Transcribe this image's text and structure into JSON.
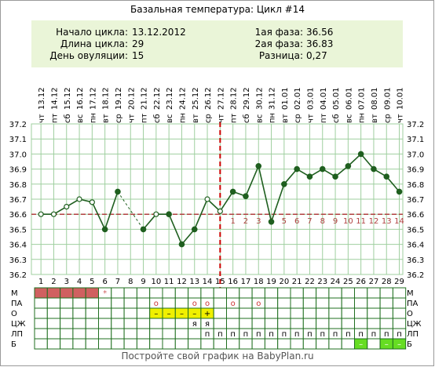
{
  "title": "Базальная температура: Цикл #14",
  "info": {
    "left": [
      {
        "label": "Начало цикла:",
        "value": "13.12.2012"
      },
      {
        "label": "Длина цикла:",
        "value": "29"
      },
      {
        "label": "День овуляции:",
        "value": "15"
      }
    ],
    "right": [
      {
        "label": "1ая фаза:",
        "value": "36.56"
      },
      {
        "label": "2ая фаза:",
        "value": "36.83"
      },
      {
        "label": "Разница:",
        "value": "0,27"
      }
    ]
  },
  "chart_data": {
    "type": "line",
    "dates": [
      "13.12",
      "14.12",
      "15.12",
      "16.12",
      "17.12",
      "18.12",
      "19.12",
      "20.12",
      "21.12",
      "22.12",
      "23.12",
      "24.12",
      "25.12",
      "26.12",
      "27.12",
      "28.12",
      "29.12",
      "30.12",
      "31.12",
      "01.01",
      "02.01",
      "03.01",
      "04.01",
      "05.01",
      "06.01",
      "07.01",
      "08.01",
      "09.01",
      "10.01"
    ],
    "weekdays": [
      "чт",
      "пт",
      "сб",
      "вс",
      "пн",
      "вт",
      "ср",
      "чт",
      "пт",
      "сб",
      "вс",
      "пн",
      "вт",
      "ср",
      "чт",
      "пт",
      "сб",
      "вс",
      "пн",
      "вт",
      "ср",
      "чт",
      "пт",
      "сб",
      "вс",
      "пн",
      "вт",
      "ср",
      "чт"
    ],
    "days": [
      1,
      2,
      3,
      4,
      5,
      6,
      7,
      8,
      9,
      10,
      11,
      12,
      13,
      14,
      15,
      16,
      17,
      18,
      19,
      20,
      21,
      22,
      23,
      24,
      25,
      26,
      27,
      28,
      29
    ],
    "y_ticks": [
      "36.2",
      "36.3",
      "36.4",
      "36.5",
      "36.6",
      "36.7",
      "36.8",
      "36.9",
      "37.0",
      "37.1",
      "37.2"
    ],
    "ylim": [
      36.2,
      37.2
    ],
    "values": [
      36.6,
      36.6,
      36.65,
      36.7,
      36.68,
      36.5,
      36.75,
      null,
      36.5,
      36.6,
      36.6,
      36.4,
      36.5,
      36.7,
      36.62,
      36.75,
      36.72,
      36.92,
      36.55,
      36.8,
      36.9,
      36.85,
      36.9,
      36.85,
      36.92,
      37.0,
      36.9,
      36.85,
      36.75
    ],
    "open_points": [
      1,
      2,
      3,
      4,
      5,
      10,
      14,
      15
    ],
    "coverline": 36.6,
    "ovulation_day": 15,
    "phase2_labels": [
      "1",
      "2",
      "3",
      "4",
      "5",
      "6",
      "7",
      "8",
      "9",
      "10",
      "11",
      "12",
      "13",
      "14"
    ],
    "colors": {
      "line": "#1f5f1f",
      "ovulation": "#cc0000",
      "coverline": "#b04040",
      "grid": "#9fcf9f",
      "info_bg": "#eaf5d8"
    }
  },
  "table": {
    "rows": [
      "М",
      "ПА",
      "О",
      "ЦЖ",
      "ЛП",
      "Б"
    ],
    "menses_days": [
      1,
      2,
      3,
      4,
      5
    ],
    "menses_star_day": 6,
    "menses_star": "*",
    "pa_marks": [
      {
        "day": 10,
        "text": "о"
      },
      {
        "day": 13,
        "text": "о"
      },
      {
        "day": 14,
        "text": "о"
      },
      {
        "day": 16,
        "text": "о"
      },
      {
        "day": 18,
        "text": "о"
      }
    ],
    "o_marks": [
      {
        "day": 10,
        "text": "–"
      },
      {
        "day": 11,
        "text": "–"
      },
      {
        "day": 12,
        "text": "–"
      },
      {
        "day": 13,
        "text": "–"
      },
      {
        "day": 14,
        "text": "+"
      }
    ],
    "czh_marks": [
      {
        "day": 13,
        "text": "я"
      },
      {
        "day": 14,
        "text": "я"
      }
    ],
    "lp_start_day": 14,
    "lp_text": "п",
    "b_marks": [
      26,
      28,
      29
    ],
    "b_text": "–",
    "colors": {
      "menses": "#d06060",
      "o": "#f0f000",
      "b": "#66dd22",
      "cell": "#1f6f1f"
    }
  },
  "footer": "Постройте свой график на BabyPlan.ru"
}
